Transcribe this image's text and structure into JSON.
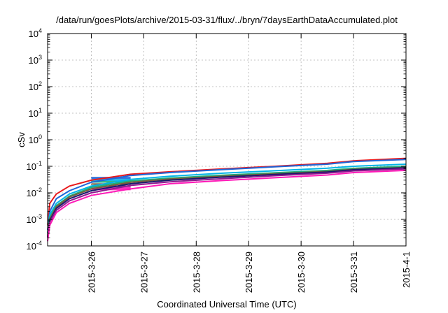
{
  "chart_data": {
    "type": "line",
    "title": "/data/run/goesPlots/archive/2015-03-31/flux/../bryn/7daysEarthDataAccumulated.plot",
    "xlabel": "Coordinated Universal Time (UTC)",
    "ylabel": "cSv",
    "y_scale": "log",
    "ylim": [
      0.0001,
      10000
    ],
    "xlim": [
      "2015-03-25 04:00",
      "2015-04-01 00:00"
    ],
    "grid": true,
    "x_ticks": [
      "2015-3-26",
      "2015-3-27",
      "2015-3-28",
      "2015-3-29",
      "2015-3-30",
      "2015-3-31",
      "2015-4-1"
    ],
    "y_ticks": [
      {
        "base": "10",
        "exp": "-4"
      },
      {
        "base": "10",
        "exp": "-3"
      },
      {
        "base": "10",
        "exp": "-2"
      },
      {
        "base": "10",
        "exp": "-1"
      },
      {
        "base": "10",
        "exp": "0"
      },
      {
        "base": "10",
        "exp": "1"
      },
      {
        "base": "10",
        "exp": "2"
      },
      {
        "base": "10",
        "exp": "3"
      },
      {
        "base": "10",
        "exp": "4"
      }
    ],
    "series": [
      {
        "color": "#e8191c",
        "x": [
          "2015-03-25 04:00",
          "2015-03-25 05:00",
          "2015-03-25 08:00",
          "2015-03-25 14:00",
          "2015-03-26 00:00",
          "2015-03-26 18:00",
          "2015-03-27 12:00",
          "2015-03-28 12:00",
          "2015-03-29 12:00",
          "2015-03-30 12:00",
          "2015-03-31 00:00",
          "2015-04-01 00:00"
        ],
        "y": [
          0.0006,
          0.004,
          0.009,
          0.018,
          0.03,
          0.05,
          0.062,
          0.08,
          0.1,
          0.13,
          0.16,
          0.2
        ]
      },
      {
        "color": "#1f67d9",
        "x": [
          "2015-03-25 04:00",
          "2015-03-25 05:00",
          "2015-03-25 08:00",
          "2015-03-25 14:00",
          "2015-03-26 00:00",
          "2015-03-26 18:00",
          "2015-03-27 12:00",
          "2015-03-28 12:00",
          "2015-03-29 12:00",
          "2015-03-30 12:00",
          "2015-03-31 00:00",
          "2015-04-01 00:00"
        ],
        "y": [
          0.0004,
          0.002,
          0.006,
          0.012,
          0.025,
          0.045,
          0.058,
          0.075,
          0.095,
          0.12,
          0.15,
          0.18
        ]
      },
      {
        "color": "#00b3e6",
        "x": [
          "2015-03-25 04:00",
          "2015-03-25 05:00",
          "2015-03-25 08:00",
          "2015-03-25 14:00",
          "2015-03-26 00:00",
          "2015-03-26 18:00",
          "2015-03-27 12:00",
          "2015-03-28 12:00",
          "2015-03-29 12:00",
          "2015-03-30 12:00",
          "2015-03-31 00:00",
          "2015-04-01 00:00"
        ],
        "y": [
          0.0003,
          0.0015,
          0.004,
          0.009,
          0.018,
          0.032,
          0.042,
          0.055,
          0.068,
          0.085,
          0.1,
          0.12
        ]
      },
      {
        "color": "#1fae7a",
        "x": [
          "2015-03-25 04:00",
          "2015-03-25 05:00",
          "2015-03-25 08:00",
          "2015-03-25 14:00",
          "2015-03-26 00:00",
          "2015-03-26 18:00",
          "2015-03-27 12:00",
          "2015-03-28 12:00",
          "2015-03-29 12:00",
          "2015-03-30 12:00",
          "2015-03-31 00:00",
          "2015-04-01 00:00"
        ],
        "y": [
          0.0003,
          0.0012,
          0.0033,
          0.0075,
          0.016,
          0.028,
          0.036,
          0.046,
          0.057,
          0.07,
          0.084,
          0.1
        ]
      },
      {
        "color": "#7a5c3a",
        "x": [
          "2015-03-25 04:00",
          "2015-03-25 05:00",
          "2015-03-25 08:00",
          "2015-03-25 14:00",
          "2015-03-26 00:00",
          "2015-03-26 18:00",
          "2015-03-27 12:00",
          "2015-03-28 12:00",
          "2015-03-29 12:00",
          "2015-03-30 12:00",
          "2015-03-31 00:00",
          "2015-04-01 00:00"
        ],
        "y": [
          0.00025,
          0.001,
          0.003,
          0.007,
          0.014,
          0.025,
          0.033,
          0.042,
          0.052,
          0.064,
          0.077,
          0.09
        ]
      },
      {
        "color": "#1a1a6e",
        "x": [
          "2015-03-25 04:00",
          "2015-03-25 05:00",
          "2015-03-25 08:00",
          "2015-03-25 14:00",
          "2015-03-26 00:00",
          "2015-03-26 18:00",
          "2015-03-27 12:00",
          "2015-03-28 12:00",
          "2015-03-29 12:00",
          "2015-03-30 12:00",
          "2015-03-31 00:00",
          "2015-04-01 00:00"
        ],
        "y": [
          0.00022,
          0.0009,
          0.0026,
          0.006,
          0.012,
          0.022,
          0.03,
          0.039,
          0.049,
          0.061,
          0.074,
          0.088
        ]
      },
      {
        "color": "#8e1b8e",
        "x": [
          "2015-03-25 04:00",
          "2015-03-25 05:00",
          "2015-03-25 08:00",
          "2015-03-25 14:00",
          "2015-03-26 00:00",
          "2015-03-26 18:00",
          "2015-03-27 12:00",
          "2015-03-28 12:00",
          "2015-03-29 12:00",
          "2015-03-30 12:00",
          "2015-03-31 00:00",
          "2015-04-01 00:00"
        ],
        "y": [
          0.0002,
          0.0008,
          0.0022,
          0.005,
          0.01,
          0.019,
          0.026,
          0.034,
          0.044,
          0.055,
          0.067,
          0.08
        ]
      },
      {
        "color": "#ff1ab8",
        "x": [
          "2015-03-25 04:00",
          "2015-03-25 05:00",
          "2015-03-25 08:00",
          "2015-03-25 14:00",
          "2015-03-26 00:00",
          "2015-03-26 18:00",
          "2015-03-27 12:00",
          "2015-03-28 12:00",
          "2015-03-29 12:00",
          "2015-03-30 12:00",
          "2015-03-31 00:00",
          "2015-04-01 00:00"
        ],
        "y": [
          0.00015,
          0.0006,
          0.0018,
          0.004,
          0.008,
          0.014,
          0.022,
          0.029,
          0.037,
          0.047,
          0.058,
          0.07
        ]
      }
    ],
    "bands": [
      {
        "color": "#1f67d9",
        "x": [
          "2015-03-26 00:00",
          "2015-03-26 18:00"
        ],
        "y": [
          0.033,
          0.04
        ]
      },
      {
        "color": "#00b3e6",
        "x": [
          "2015-03-26 00:00",
          "2015-03-26 18:00"
        ],
        "y": [
          0.028,
          0.033
        ]
      },
      {
        "color": "#1fae7a",
        "x": [
          "2015-03-26 00:00",
          "2015-03-26 18:00"
        ],
        "y": [
          0.024,
          0.028
        ]
      },
      {
        "color": "#7a5c3a",
        "x": [
          "2015-03-26 00:00",
          "2015-03-26 18:00"
        ],
        "y": [
          0.02,
          0.023
        ]
      },
      {
        "color": "#8e1b8e",
        "x": [
          "2015-03-26 00:00",
          "2015-03-26 18:00"
        ],
        "y": [
          0.0165,
          0.019
        ]
      },
      {
        "color": "#ff1ab8",
        "x": [
          "2015-03-26 00:00",
          "2015-03-26 18:00"
        ],
        "y": [
          0.0125,
          0.0165
        ]
      }
    ]
  }
}
